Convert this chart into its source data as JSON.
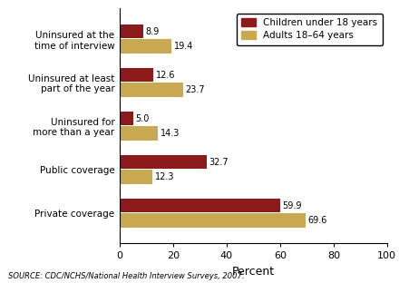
{
  "categories": [
    "Uninsured at the\ntime of interview",
    "Uninsured at least\npart of the year",
    "Uninsured for\nmore than a year",
    "Public coverage",
    "Private coverage"
  ],
  "children_values": [
    8.9,
    12.6,
    5.0,
    32.7,
    59.9
  ],
  "adults_values": [
    19.4,
    23.7,
    14.3,
    12.3,
    69.6
  ],
  "children_color": "#8B1A1A",
  "adults_color": "#C8A850",
  "bar_height": 0.32,
  "xlim": [
    0,
    100
  ],
  "xticks": [
    0,
    20,
    40,
    60,
    80,
    100
  ],
  "xlabel": "Percent",
  "legend_labels": [
    "Children under 18 years",
    "Adults 18–64 years"
  ],
  "source_text": "SOURCE: CDC/NCHS/National Health Interview Surveys, 2007.",
  "bg_color": "#ffffff"
}
